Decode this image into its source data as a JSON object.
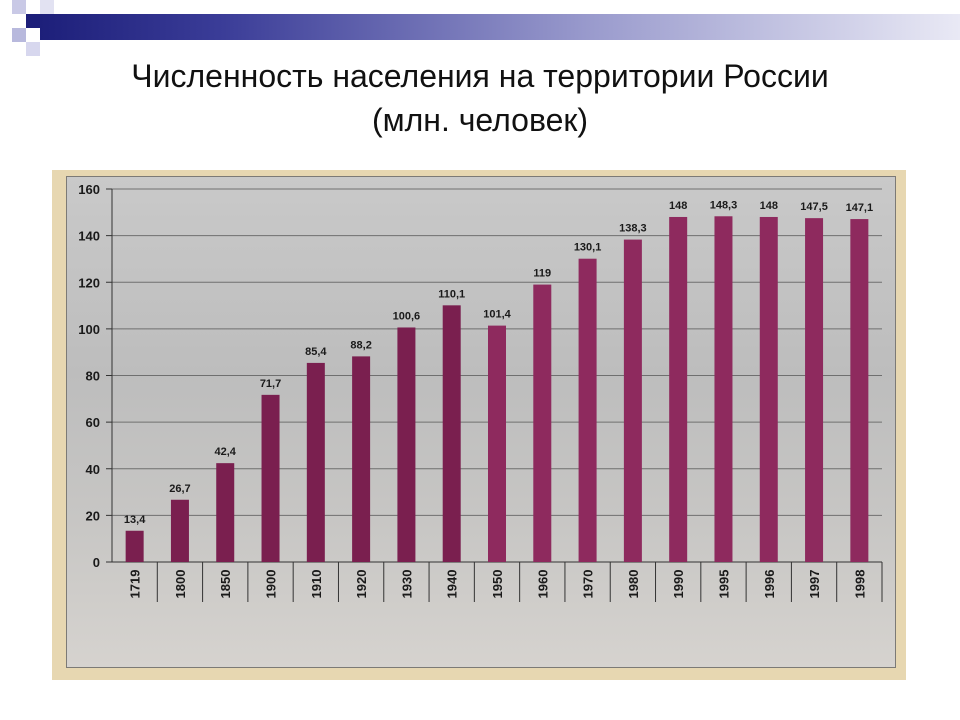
{
  "slide": {
    "title_line1": "Численность населения на территории России",
    "title_line2": "(млн. человек)"
  },
  "colors": {
    "bar": "#7a1f4f",
    "bar_light": "#8e2a5e",
    "header_dark": "#1d1f7a",
    "frame": "#e7d7b1"
  },
  "chart_data": {
    "type": "bar",
    "title": "",
    "xlabel": "",
    "ylabel": "",
    "ylim": [
      0,
      160
    ],
    "yticks": [
      0,
      20,
      40,
      60,
      80,
      100,
      120,
      140,
      160
    ],
    "grid": true,
    "categories": [
      "1719",
      "1800",
      "1850",
      "1900",
      "1910",
      "1920",
      "1930",
      "1940",
      "1950",
      "1960",
      "1970",
      "1980",
      "1990",
      "1995",
      "1996",
      "1997",
      "1998"
    ],
    "values": [
      13.4,
      26.7,
      42.4,
      71.7,
      85.4,
      88.2,
      100.6,
      110.1,
      101.4,
      119,
      130.1,
      138.3,
      148,
      148.3,
      148,
      147.5,
      147.1
    ],
    "labels": [
      "13,4",
      "26,7",
      "42,4",
      "71,7",
      "85,4",
      "88,2",
      "100,6",
      "110,1",
      "101,4",
      "119",
      "130,1",
      "138,3",
      "148",
      "148,3",
      "148",
      "147,5",
      "147,1"
    ]
  }
}
